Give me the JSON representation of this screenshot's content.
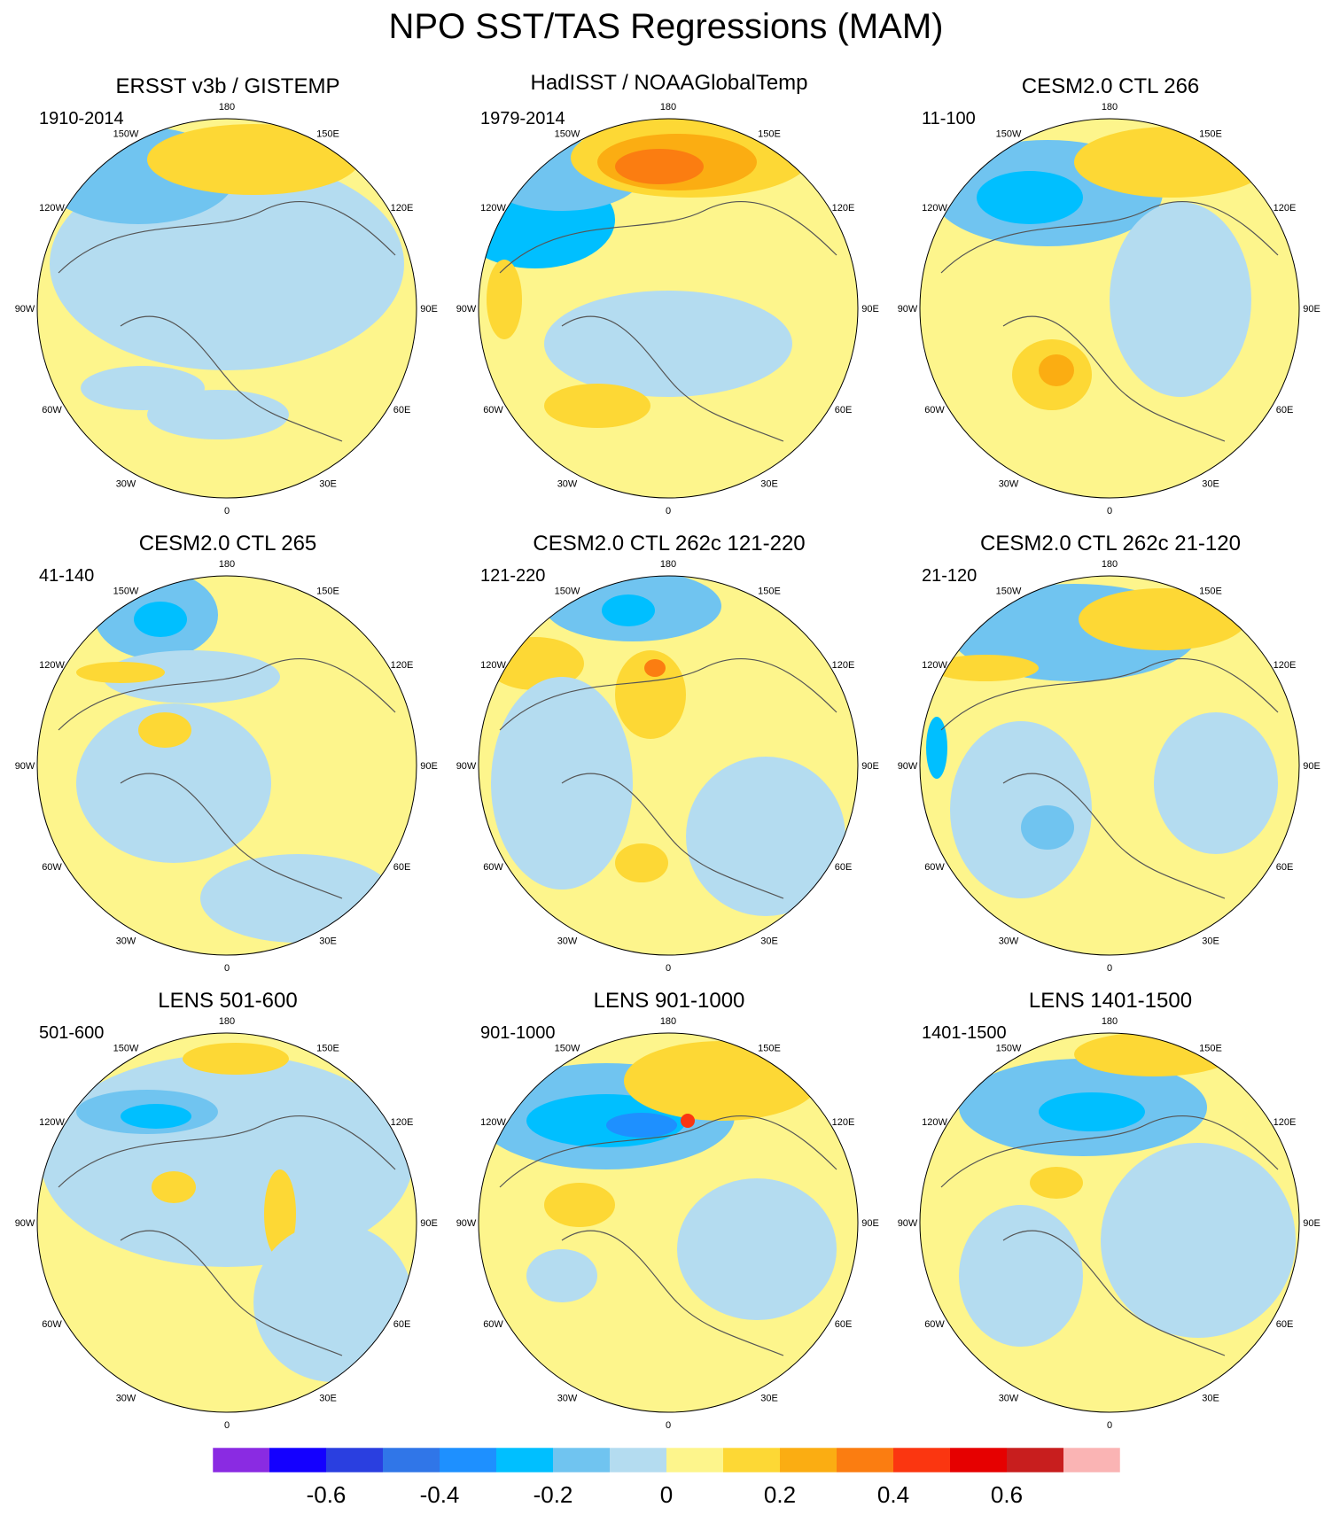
{
  "title": "NPO SST/TAS Regressions (MAM)",
  "chart_data": {
    "type": "heatmap",
    "projection": "north polar stereographic",
    "longitude_labels": [
      "180",
      "150E",
      "120E",
      "90E",
      "60E",
      "30E",
      "0",
      "30W",
      "60W",
      "90W",
      "120W",
      "150W"
    ],
    "panels": [
      {
        "title": "ERSST v3b / GISTEMP",
        "period": "1910-2014"
      },
      {
        "title": "HadISST / NOAAGlobalTemp",
        "period": "1979-2014"
      },
      {
        "title": "CESM2.0 CTL 266",
        "period": "11-100"
      },
      {
        "title": "CESM2.0 CTL 265",
        "period": "41-140"
      },
      {
        "title": "CESM2.0 CTL 262c 121-220",
        "period": "121-220"
      },
      {
        "title": "CESM2.0 CTL 262c 21-120",
        "period": "21-120"
      },
      {
        "title": "LENS 501-600",
        "period": "501-600"
      },
      {
        "title": "LENS 901-1000",
        "period": "901-1000"
      },
      {
        "title": "LENS 1401-1500",
        "period": "1401-1500"
      }
    ],
    "colorbar": {
      "levels": [
        -0.7,
        -0.6,
        -0.5,
        -0.4,
        -0.3,
        -0.2,
        -0.1,
        0,
        0.1,
        0.2,
        0.3,
        0.4,
        0.5,
        0.6,
        0.7
      ],
      "tick_labels": [
        "-0.6",
        "-0.4",
        "-0.2",
        "0",
        "0.2",
        "0.4",
        "0.6"
      ],
      "tick_values": [
        -0.6,
        -0.4,
        -0.2,
        0,
        0.2,
        0.4,
        0.6
      ],
      "colors": [
        "#8a2be2",
        "#1400ff",
        "#2a3fe0",
        "#3076e8",
        "#1e90ff",
        "#00bfff",
        "#70c4f0",
        "#b4dcf0",
        "#fdf58c",
        "#fdd835",
        "#fbad12",
        "#fb7d11",
        "#fb3610",
        "#e60000",
        "#c81e1e",
        "#fab4b4"
      ]
    }
  }
}
